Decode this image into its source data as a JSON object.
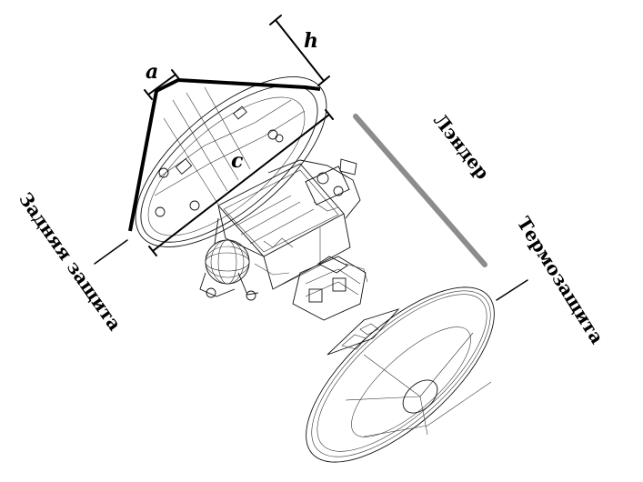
{
  "labels": {
    "back_shell": "Задняя защита",
    "lander": "Лэндер",
    "heat_shield": "Термозащита"
  },
  "dimensions": {
    "a": "a",
    "h": "h",
    "c": "c"
  },
  "colors": {
    "ink": "#000000",
    "lander_bar": "#8c8c8c"
  }
}
